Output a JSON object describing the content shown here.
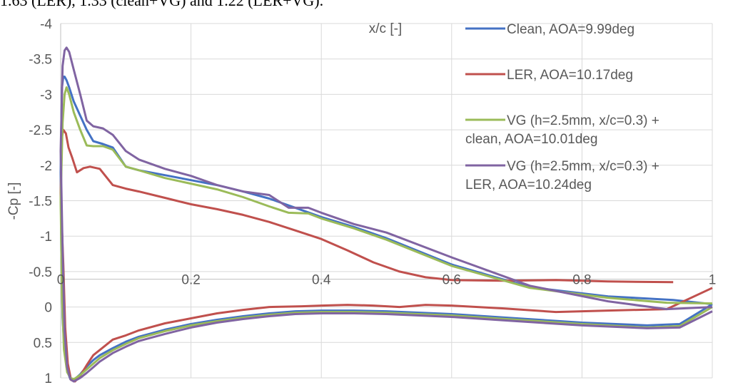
{
  "caption_fragment": "1.63 (LER), 1.33 (clean+VG) and 1.22 (LER+VG).",
  "chart_data": {
    "type": "line",
    "xlabel": "x/c [-]",
    "ylabel": "-Cp [-]",
    "xlim": [
      0,
      1
    ],
    "ylim": [
      -4,
      1
    ],
    "y_inverted": true,
    "x_ticks": [
      "0",
      "0.2",
      "0.4",
      "0.6",
      "0.8",
      "1"
    ],
    "y_ticks": [
      "-4",
      "-3.5",
      "-3",
      "-2.5",
      "-2",
      "-1.5",
      "-1",
      "-0.5",
      "0",
      "0.5",
      "1"
    ],
    "grid": true,
    "legend_position": "top-right",
    "series": [
      {
        "name": "Clean, AOA=9.99deg",
        "color": "#4472C4",
        "x": [
          1.0,
          0.94,
          0.84,
          0.72,
          0.6,
          0.5,
          0.45,
          0.4,
          0.36,
          0.32,
          0.28,
          0.24,
          0.2,
          0.16,
          0.12,
          0.1,
          0.08,
          0.065,
          0.05,
          0.04,
          0.03,
          0.02,
          0.013,
          0.009,
          0.006,
          0.004,
          0.002,
          0.0,
          0.001,
          0.003,
          0.006,
          0.01,
          0.015,
          0.02,
          0.03,
          0.04,
          0.05,
          0.06,
          0.08,
          0.1,
          0.12,
          0.16,
          0.2,
          0.24,
          0.28,
          0.32,
          0.36,
          0.4,
          0.45,
          0.5,
          0.6,
          0.7,
          0.8,
          0.9,
          0.95,
          1.0
        ],
        "y": [
          -0.04,
          -0.1,
          -0.15,
          -0.28,
          -0.6,
          -0.97,
          -1.13,
          -1.27,
          -1.4,
          -1.53,
          -1.63,
          -1.72,
          -1.79,
          -1.86,
          -1.93,
          -1.98,
          -2.25,
          -2.3,
          -2.34,
          -2.5,
          -2.7,
          -2.9,
          -3.1,
          -3.2,
          -3.25,
          -3.25,
          -3.1,
          -1.9,
          -0.8,
          0.15,
          0.62,
          0.9,
          1.02,
          1.03,
          0.95,
          0.84,
          0.75,
          0.68,
          0.58,
          0.49,
          0.42,
          0.32,
          0.24,
          0.18,
          0.13,
          0.09,
          0.06,
          0.05,
          0.05,
          0.06,
          0.1,
          0.16,
          0.22,
          0.26,
          0.24,
          -0.04
        ]
      },
      {
        "name": "LER, AOA=10.17deg",
        "color": "#C0504D",
        "x": [
          1.0,
          0.93,
          0.84,
          0.76,
          0.68,
          0.6,
          0.56,
          0.52,
          0.48,
          0.44,
          0.4,
          0.37,
          0.32,
          0.28,
          0.24,
          0.2,
          0.16,
          0.12,
          0.1,
          0.08,
          0.065,
          0.05,
          0.04,
          0.03,
          0.022,
          0.016,
          0.011,
          0.007,
          0.004,
          0.0,
          0.002,
          0.004,
          0.008,
          0.012,
          0.018,
          0.025,
          0.035,
          0.045,
          0.06,
          0.08,
          0.1,
          0.12,
          0.16,
          0.2,
          0.24,
          0.28,
          0.32,
          0.36,
          0.4,
          0.44,
          0.48,
          0.52,
          0.56,
          0.6,
          0.68,
          0.76,
          0.84,
          0.94
        ],
        "y": [
          -0.27,
          0.03,
          0.05,
          0.07,
          0.02,
          -0.02,
          -0.03,
          -0.0,
          -0.02,
          -0.03,
          -0.02,
          -0.01,
          0.0,
          0.04,
          0.09,
          0.16,
          0.23,
          0.33,
          0.4,
          0.46,
          0.57,
          0.68,
          0.82,
          0.97,
          1.05,
          1.03,
          0.8,
          0.3,
          -0.6,
          -1.6,
          -2.4,
          -2.5,
          -2.45,
          -2.25,
          -2.1,
          -1.9,
          -1.96,
          -1.98,
          -1.95,
          -1.72,
          -1.67,
          -1.63,
          -1.54,
          -1.45,
          -1.38,
          -1.3,
          -1.2,
          -1.08,
          -0.96,
          -0.8,
          -0.63,
          -0.5,
          -0.42,
          -0.38,
          -0.37,
          -0.38,
          -0.36,
          -0.35
        ]
      },
      {
        "name": "VG (h=2.5mm, x/c=0.3) + clean, AOA=10.01deg",
        "color": "#9BBB59",
        "x": [
          1.0,
          0.93,
          0.84,
          0.72,
          0.6,
          0.5,
          0.45,
          0.4,
          0.38,
          0.35,
          0.32,
          0.28,
          0.24,
          0.2,
          0.16,
          0.12,
          0.1,
          0.08,
          0.065,
          0.05,
          0.04,
          0.03,
          0.02,
          0.013,
          0.009,
          0.006,
          0.003,
          0.0,
          0.002,
          0.005,
          0.01,
          0.015,
          0.02,
          0.03,
          0.04,
          0.05,
          0.06,
          0.08,
          0.1,
          0.12,
          0.16,
          0.2,
          0.24,
          0.28,
          0.32,
          0.36,
          0.4,
          0.45,
          0.5,
          0.6,
          0.7,
          0.8,
          0.9,
          0.95,
          1.0
        ],
        "y": [
          -0.05,
          -0.06,
          -0.13,
          -0.27,
          -0.58,
          -0.95,
          -1.11,
          -1.25,
          -1.32,
          -1.33,
          -1.42,
          -1.55,
          -1.66,
          -1.74,
          -1.82,
          -1.93,
          -1.98,
          -2.22,
          -2.27,
          -2.27,
          -2.28,
          -2.5,
          -2.75,
          -3.0,
          -3.1,
          -3.0,
          -2.6,
          -1.5,
          -0.2,
          0.6,
          0.92,
          1.0,
          1.02,
          0.96,
          0.88,
          0.8,
          0.72,
          0.61,
          0.52,
          0.44,
          0.34,
          0.26,
          0.2,
          0.15,
          0.11,
          0.08,
          0.07,
          0.07,
          0.08,
          0.12,
          0.18,
          0.24,
          0.29,
          0.27,
          0.0
        ]
      },
      {
        "name": "VG (h=2.5mm, x/c=0.3) + LER, AOA=10.24deg",
        "color": "#8064A2",
        "x": [
          1.0,
          0.93,
          0.84,
          0.72,
          0.6,
          0.5,
          0.45,
          0.4,
          0.38,
          0.35,
          0.32,
          0.28,
          0.24,
          0.2,
          0.16,
          0.12,
          0.1,
          0.08,
          0.065,
          0.05,
          0.04,
          0.03,
          0.02,
          0.013,
          0.009,
          0.006,
          0.003,
          0.0,
          0.003,
          0.006,
          0.01,
          0.015,
          0.02,
          0.03,
          0.04,
          0.05,
          0.06,
          0.08,
          0.1,
          0.12,
          0.16,
          0.2,
          0.24,
          0.28,
          0.32,
          0.36,
          0.4,
          0.45,
          0.5,
          0.6,
          0.7,
          0.8,
          0.9,
          0.95,
          1.0
        ],
        "y": [
          0.0,
          0.03,
          -0.08,
          -0.3,
          -0.7,
          -1.05,
          -1.17,
          -1.33,
          -1.4,
          -1.4,
          -1.58,
          -1.63,
          -1.72,
          -1.85,
          -1.95,
          -2.08,
          -2.2,
          -2.43,
          -2.52,
          -2.55,
          -2.63,
          -3.0,
          -3.35,
          -3.6,
          -3.66,
          -3.62,
          -3.4,
          -2.2,
          -0.8,
          0.35,
          0.85,
          1.02,
          1.05,
          1.0,
          0.93,
          0.85,
          0.77,
          0.65,
          0.56,
          0.48,
          0.38,
          0.29,
          0.22,
          0.17,
          0.13,
          0.1,
          0.09,
          0.09,
          0.1,
          0.14,
          0.2,
          0.26,
          0.3,
          0.29,
          0.06
        ]
      }
    ]
  }
}
